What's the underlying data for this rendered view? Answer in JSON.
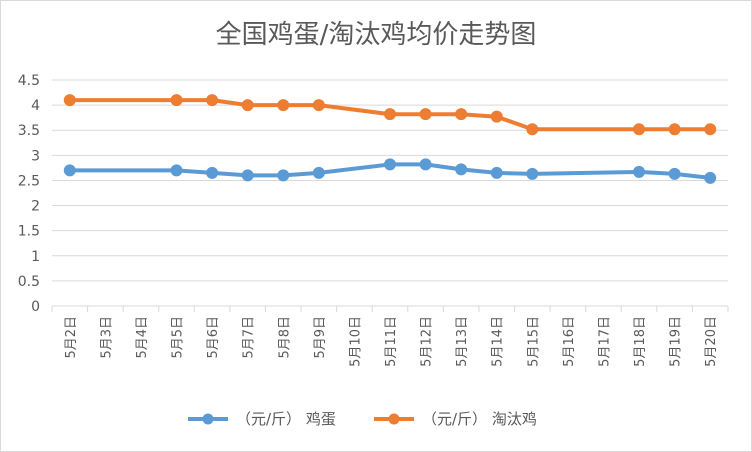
{
  "chart_data": {
    "type": "line",
    "title": "全国鸡蛋/淘汰鸡均价走势图",
    "categories": [
      "5月2日",
      "5月3日",
      "5月4日",
      "5月5日",
      "5月6日",
      "5月7日",
      "5月8日",
      "5月9日",
      "5月10日",
      "5月11日",
      "5月12日",
      "5月13日",
      "5月14日",
      "5月15日",
      "5月16日",
      "5月17日",
      "5月18日",
      "5月19日",
      "5月20日"
    ],
    "ylim": [
      0,
      4.5
    ],
    "yticks": [
      "0",
      "0.5",
      "1",
      "1.5",
      "2",
      "2.5",
      "3",
      "3.5",
      "4",
      "4.5"
    ],
    "grid": true,
    "legend_position": "bottom",
    "series": [
      {
        "name": "（元/斤） 鸡蛋",
        "color": "#5b9bd5",
        "values": [
          2.7,
          null,
          null,
          2.7,
          2.65,
          2.6,
          2.6,
          2.65,
          null,
          2.82,
          2.82,
          2.72,
          2.65,
          2.63,
          null,
          null,
          2.67,
          2.63,
          2.55
        ]
      },
      {
        "name": "（元/斤） 淘汰鸡",
        "color": "#ed7d31",
        "values": [
          4.1,
          null,
          null,
          4.1,
          4.1,
          4.0,
          4.0,
          4.0,
          null,
          3.82,
          3.82,
          3.82,
          3.77,
          3.52,
          null,
          null,
          3.52,
          3.52,
          3.52
        ]
      }
    ]
  }
}
